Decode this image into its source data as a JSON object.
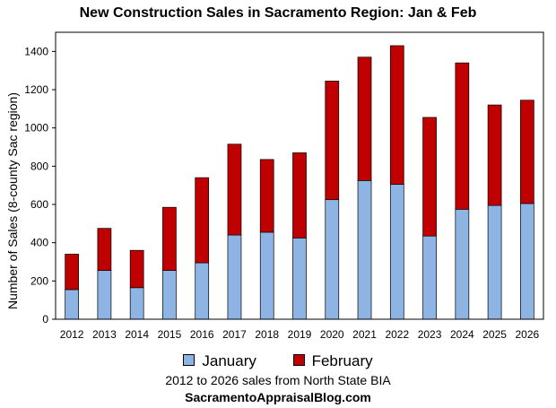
{
  "chart_data": {
    "type": "bar",
    "stacked": true,
    "title": "New Construction Sales in Sacramento Region: Jan & Feb",
    "xlabel": "",
    "ylabel": "Number of Sales (8-county Sac region)",
    "ylim": [
      0,
      1500
    ],
    "yticks": [
      0,
      200,
      400,
      600,
      800,
      1000,
      1200,
      1400
    ],
    "categories": [
      "2012",
      "2013",
      "2014",
      "2015",
      "2016",
      "2017",
      "2018",
      "2019",
      "2020",
      "2021",
      "2022",
      "2023",
      "2024",
      "2025",
      "2026"
    ],
    "series": [
      {
        "name": "January",
        "color": "#8eb4e3",
        "values": [
          155,
          255,
          165,
          255,
          295,
          440,
          455,
          425,
          625,
          725,
          705,
          435,
          575,
          595,
          605
        ]
      },
      {
        "name": "February",
        "color": "#c00000",
        "values": [
          185,
          220,
          195,
          330,
          445,
          475,
          380,
          445,
          620,
          645,
          725,
          620,
          765,
          525,
          540
        ]
      }
    ],
    "grid": false,
    "legend_position": "bottom"
  },
  "footer": {
    "source_note": "2012 to 2026 sales from North State BIA",
    "site": "SacramentoAppraisalBlog.com"
  }
}
